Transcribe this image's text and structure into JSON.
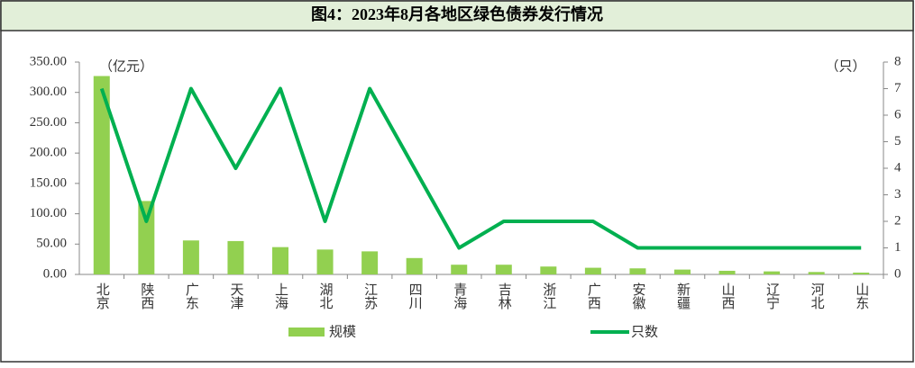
{
  "chart_data": {
    "type": "bar-line",
    "title": "图4：2023年8月各地区绿色债券发行情况",
    "y_unit": "（亿元）",
    "y2_unit": "（只）",
    "categories": [
      "北京",
      "陕西",
      "广东",
      "天津",
      "上海",
      "湖北",
      "江苏",
      "四川",
      "青海",
      "吉林",
      "浙江",
      "广西",
      "安徽",
      "新疆",
      "山西",
      "辽宁",
      "河北",
      "山东"
    ],
    "series": [
      {
        "name": "规模",
        "type": "bar",
        "color": "#92d050",
        "values": [
          327,
          121,
          56,
          55,
          45,
          41,
          38,
          27,
          16,
          16,
          13,
          11,
          10,
          8,
          6,
          5,
          4,
          3
        ]
      },
      {
        "name": "只数",
        "type": "line",
        "axis": "y2",
        "color": "#00b050",
        "values": [
          7,
          2,
          7,
          4,
          7,
          2,
          7,
          4,
          1,
          2,
          2,
          2,
          1,
          1,
          1,
          1,
          1,
          1
        ]
      }
    ],
    "ylim": [
      0,
      350
    ],
    "yticks": [
      {
        "value": 0,
        "label": "0.00"
      },
      {
        "value": 50,
        "label": "50.00"
      },
      {
        "value": 100,
        "label": "100.00"
      },
      {
        "value": 150,
        "label": "150.00"
      },
      {
        "value": 200,
        "label": "200.00"
      },
      {
        "value": 250,
        "label": "250.00"
      },
      {
        "value": 300,
        "label": "300.00"
      },
      {
        "value": 350,
        "label": "350.00"
      }
    ],
    "y2lim": [
      0,
      8
    ],
    "y2ticks": [
      0,
      1,
      2,
      3,
      4,
      5,
      6,
      7,
      8
    ]
  }
}
